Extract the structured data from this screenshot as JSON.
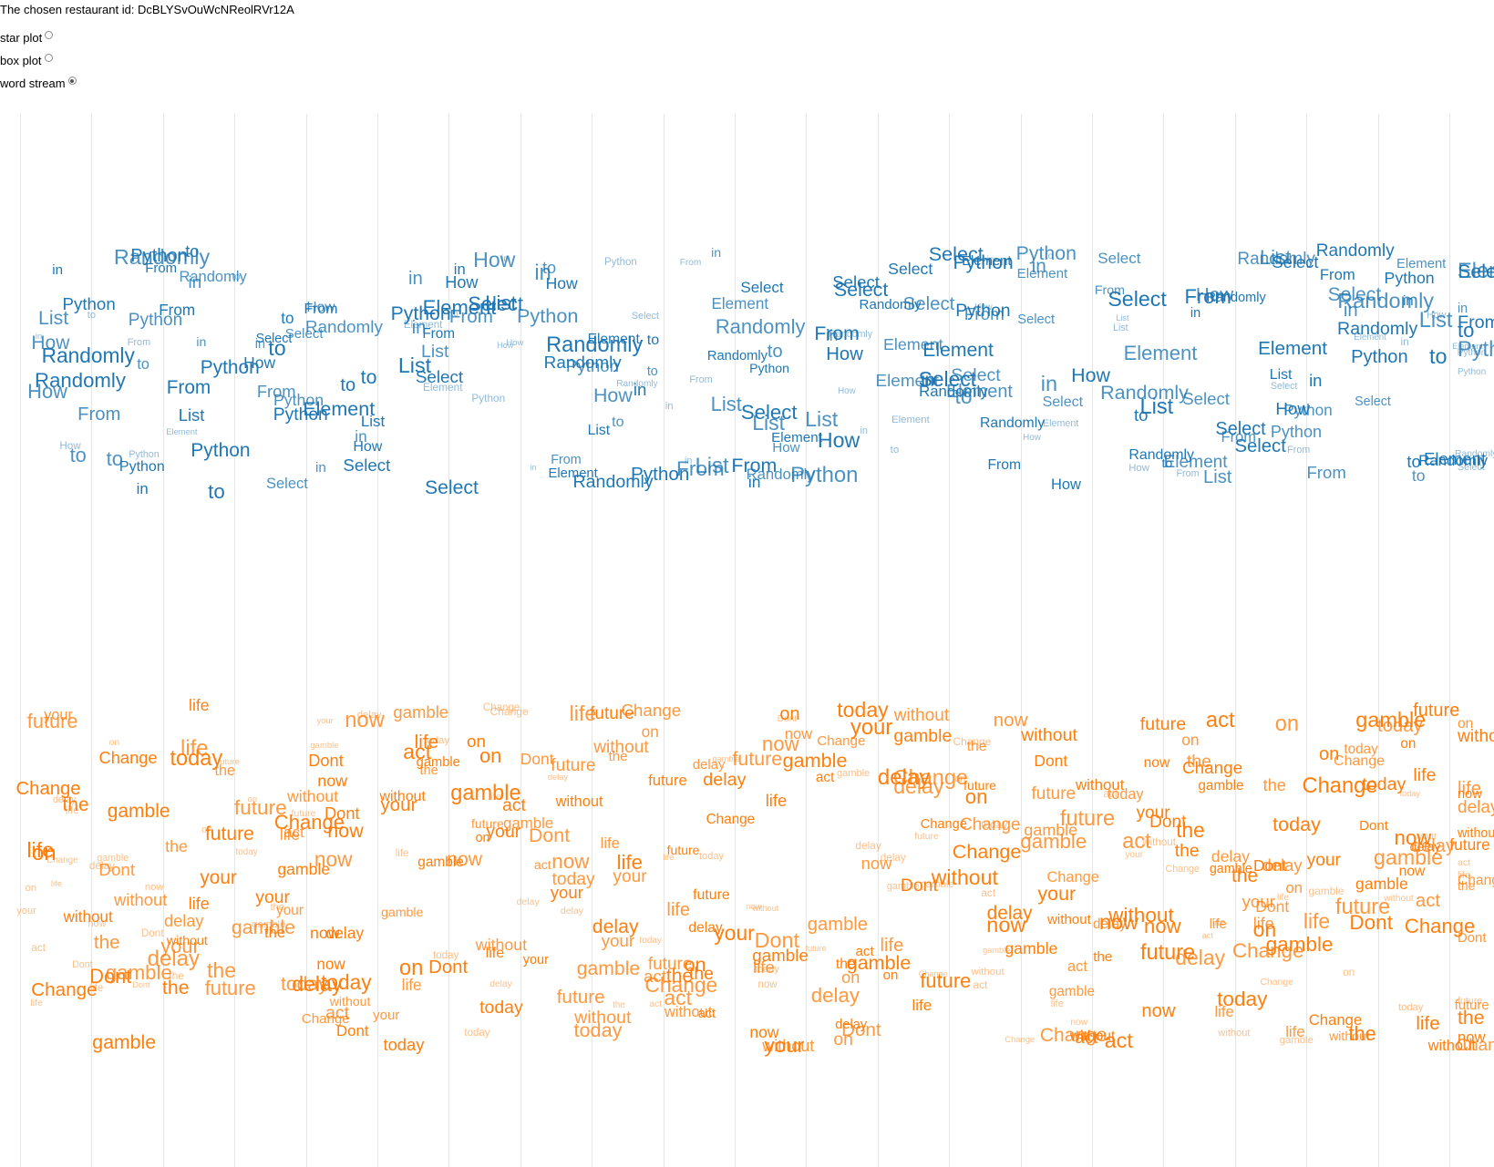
{
  "header": {
    "chosen_text": "The chosen restaurant id: DcBLYSvOuWcNReolRVr12A"
  },
  "view_options": [
    {
      "label": "star plot",
      "checked": false
    },
    {
      "label": "box plot",
      "checked": false
    },
    {
      "label": "word stream",
      "checked": true
    }
  ],
  "colors": {
    "topic_a_blue": "#1f77b4",
    "topic_b_orange": "#ff7f0e",
    "grid": "#e6e6e6"
  },
  "wordstream": {
    "topic_a_words": [
      "Element",
      "List",
      "to",
      "Randomly",
      "Python",
      "From",
      "How",
      "in",
      "Select"
    ],
    "topic_b_words": [
      "on",
      "now",
      "Dont",
      "today",
      "delay",
      "the",
      "without",
      "act",
      "life",
      "your",
      "future",
      "Change",
      "gamble"
    ],
    "columns": 21
  }
}
